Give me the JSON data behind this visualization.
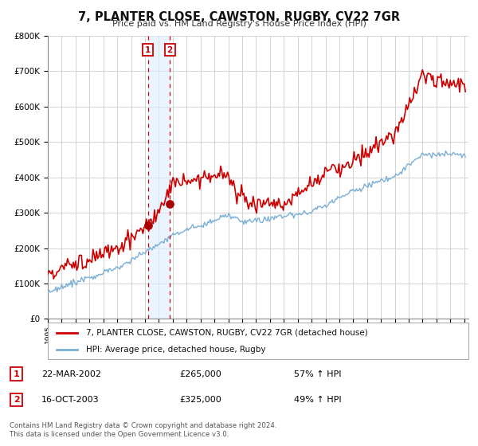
{
  "title": "7, PLANTER CLOSE, CAWSTON, RUGBY, CV22 7GR",
  "subtitle": "Price paid vs. HM Land Registry's House Price Index (HPI)",
  "ylim": [
    0,
    800000
  ],
  "xlim_start": 1995.0,
  "xlim_end": 2025.3,
  "background_color": "#ffffff",
  "grid_color": "#cccccc",
  "sale1_date": 2002.22,
  "sale1_price": 265000,
  "sale1_label": "22-MAR-2002",
  "sale1_hpi_pct": "57% ↑ HPI",
  "sale2_date": 2003.79,
  "sale2_price": 325000,
  "sale2_label": "16-OCT-2003",
  "sale2_hpi_pct": "49% ↑ HPI",
  "legend_line1": "7, PLANTER CLOSE, CAWSTON, RUGBY, CV22 7GR (detached house)",
  "legend_line2": "HPI: Average price, detached house, Rugby",
  "footer1": "Contains HM Land Registry data © Crown copyright and database right 2024.",
  "footer2": "This data is licensed under the Open Government Licence v3.0.",
  "red_line_color": "#cc0000",
  "blue_line_color": "#7aafd4",
  "vline_color": "#cc0000",
  "shade_color": "#ddeeff",
  "dot_color": "#aa0000"
}
